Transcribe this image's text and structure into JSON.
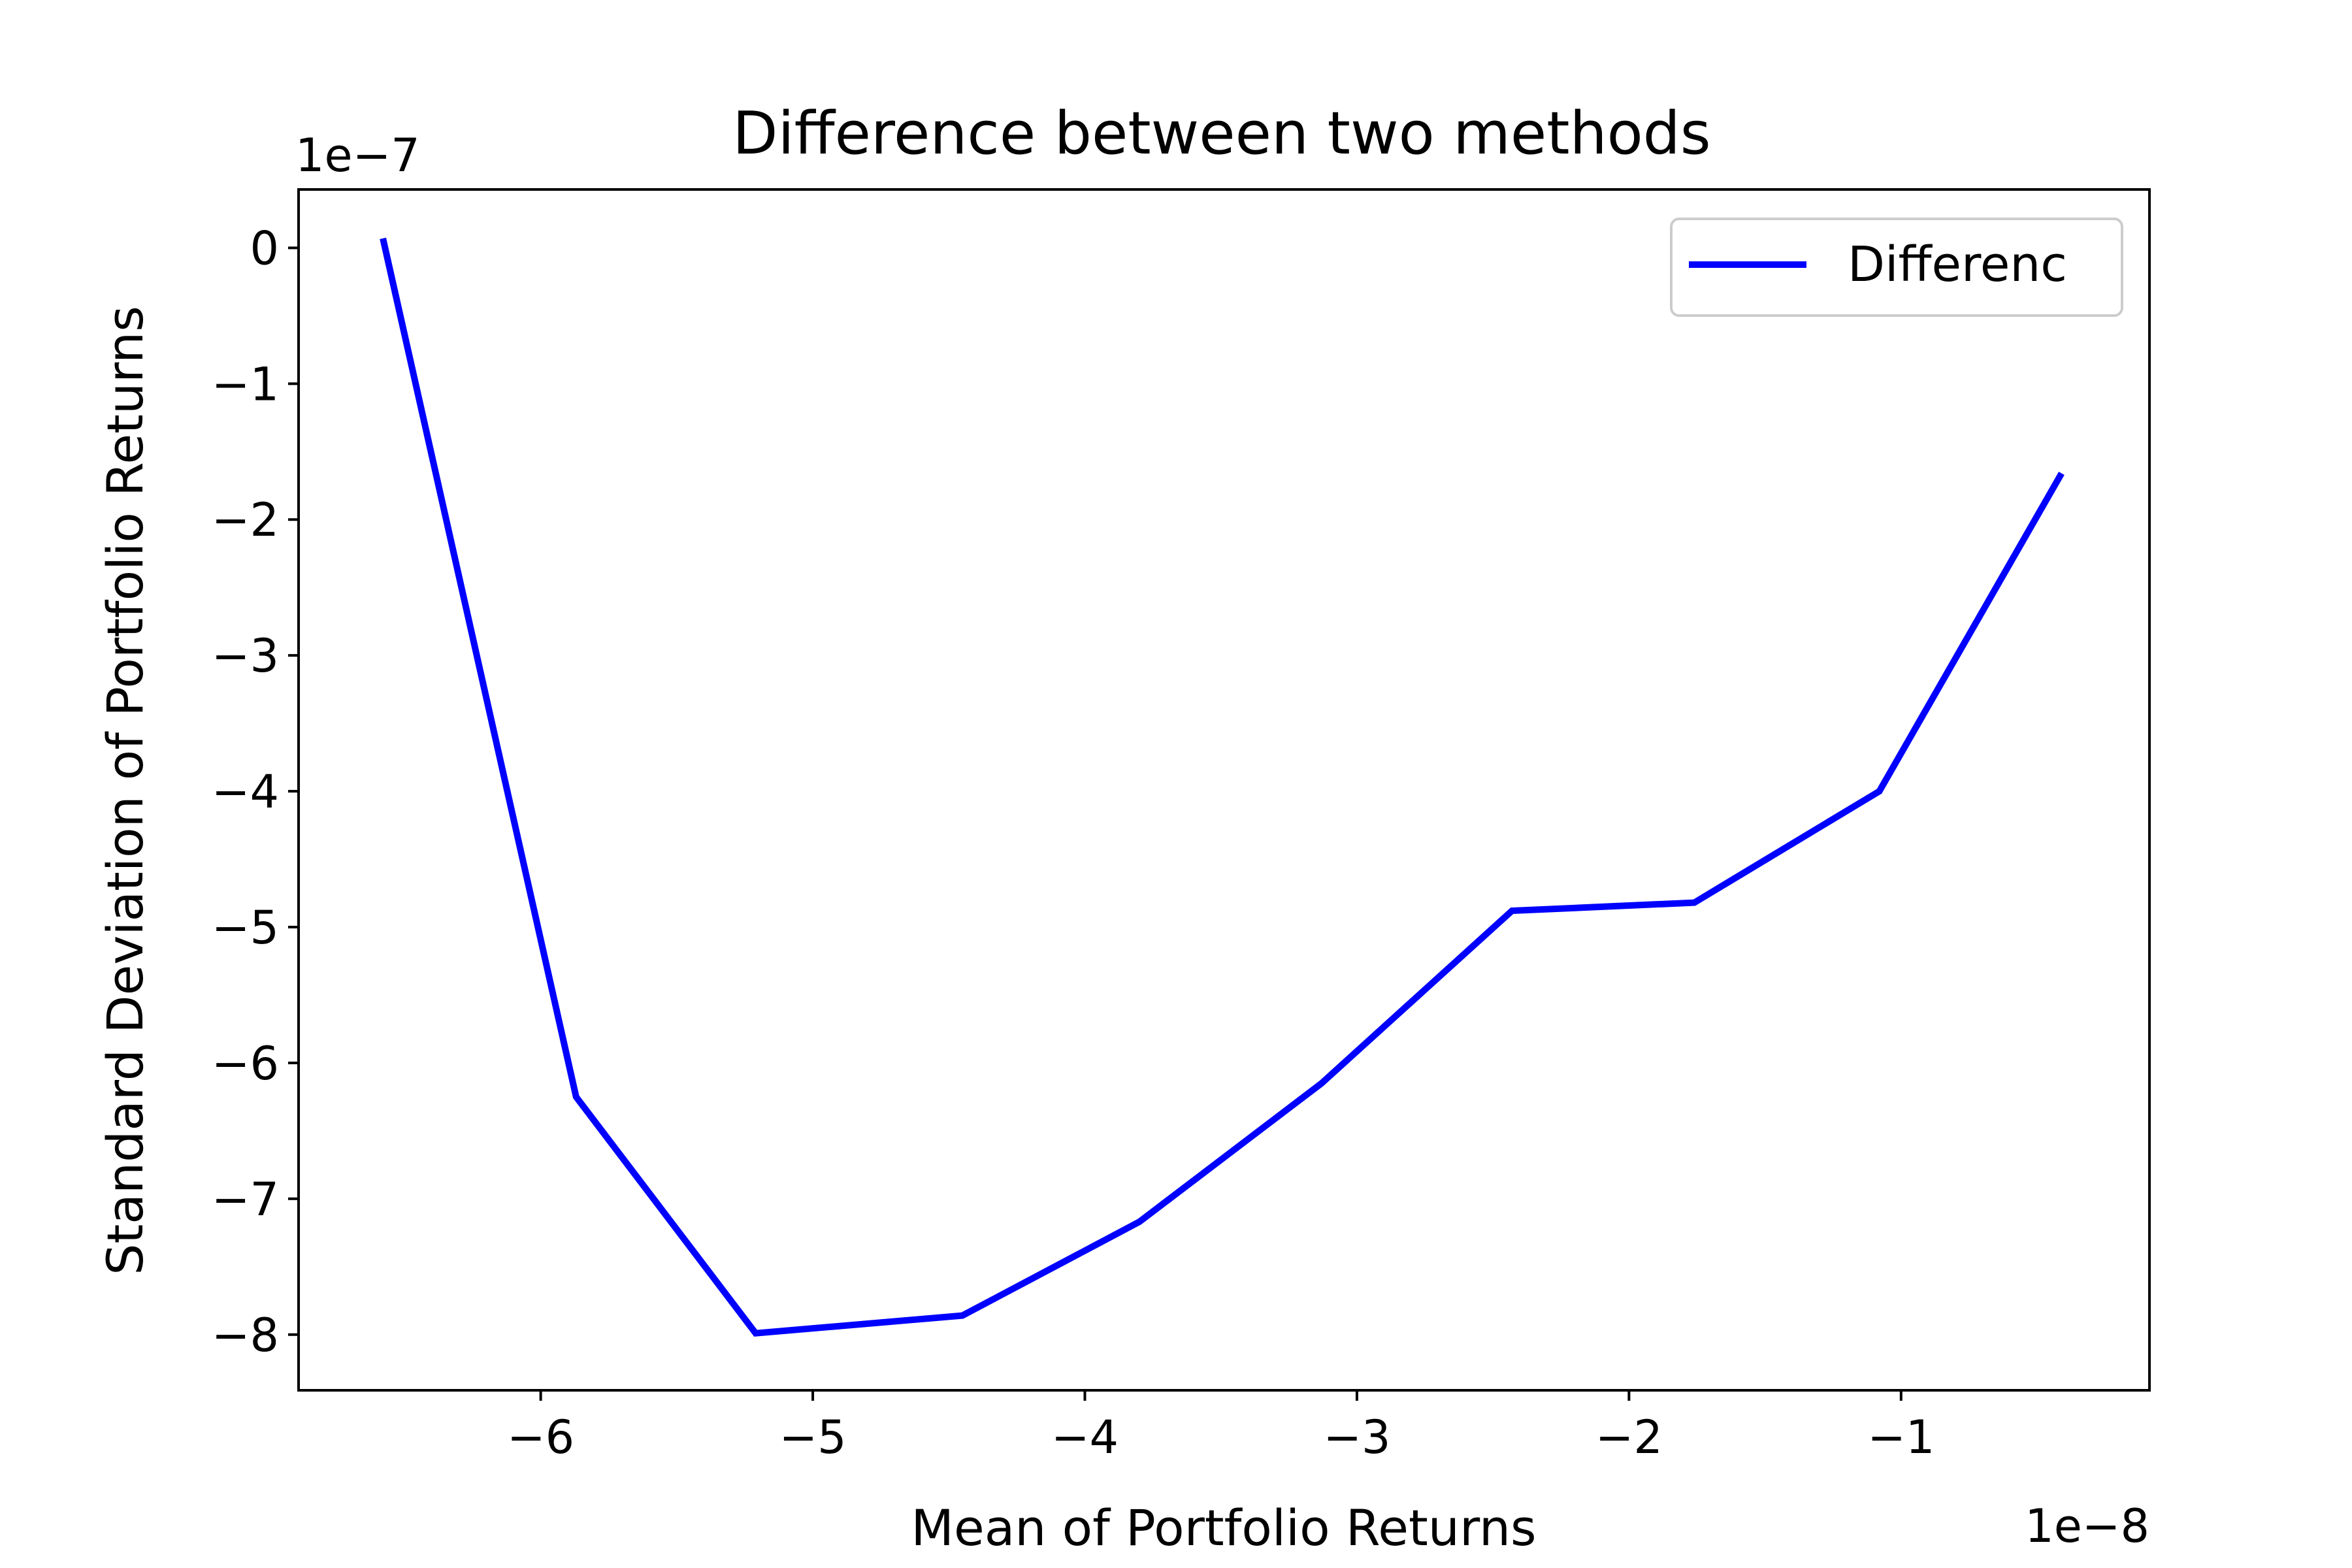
{
  "chart_data": {
    "type": "line",
    "title": "Difference between two methods",
    "xlabel": "Mean of Portfolio Returns",
    "ylabel": "Standard Deviation of Portfolio Returns",
    "x_offset_text": "1e−8",
    "y_offset_text": "1e−7",
    "xlim": [
      -6.89e-08,
      -8.7e-10
    ],
    "ylim": [
      -8.41e-07,
      4.3e-08
    ],
    "xticks": [
      {
        "value": -6e-08,
        "label": "−6"
      },
      {
        "value": -5e-08,
        "label": "−5"
      },
      {
        "value": -4e-08,
        "label": "−4"
      },
      {
        "value": -3e-08,
        "label": "−3"
      },
      {
        "value": -2e-08,
        "label": "−2"
      },
      {
        "value": -1e-08,
        "label": "−1"
      }
    ],
    "yticks": [
      {
        "value": 0,
        "label": "0"
      },
      {
        "value": -1e-07,
        "label": "−1"
      },
      {
        "value": -2e-07,
        "label": "−2"
      },
      {
        "value": -3e-07,
        "label": "−3"
      },
      {
        "value": -4e-07,
        "label": "−4"
      },
      {
        "value": -5e-07,
        "label": "−5"
      },
      {
        "value": -6e-07,
        "label": "−6"
      },
      {
        "value": -7e-07,
        "label": "−7"
      },
      {
        "value": -8e-07,
        "label": "−8"
      }
    ],
    "grid": false,
    "legend_position": "top-right",
    "series": [
      {
        "name": "Differenc",
        "color": "#0000ff",
        "x": [
          -6.58e-08,
          -5.87e-08,
          -5.21e-08,
          -4.45e-08,
          -3.8e-08,
          -3.13e-08,
          -2.43e-08,
          -1.76e-08,
          -1.08e-08,
          -4.1e-09
        ],
        "y": [
          7e-09,
          -6.25e-07,
          -7.99e-07,
          -7.86e-07,
          -7.17e-07,
          -6.15e-07,
          -4.88e-07,
          -4.82e-07,
          -4e-07,
          -1.66e-07
        ]
      }
    ]
  }
}
